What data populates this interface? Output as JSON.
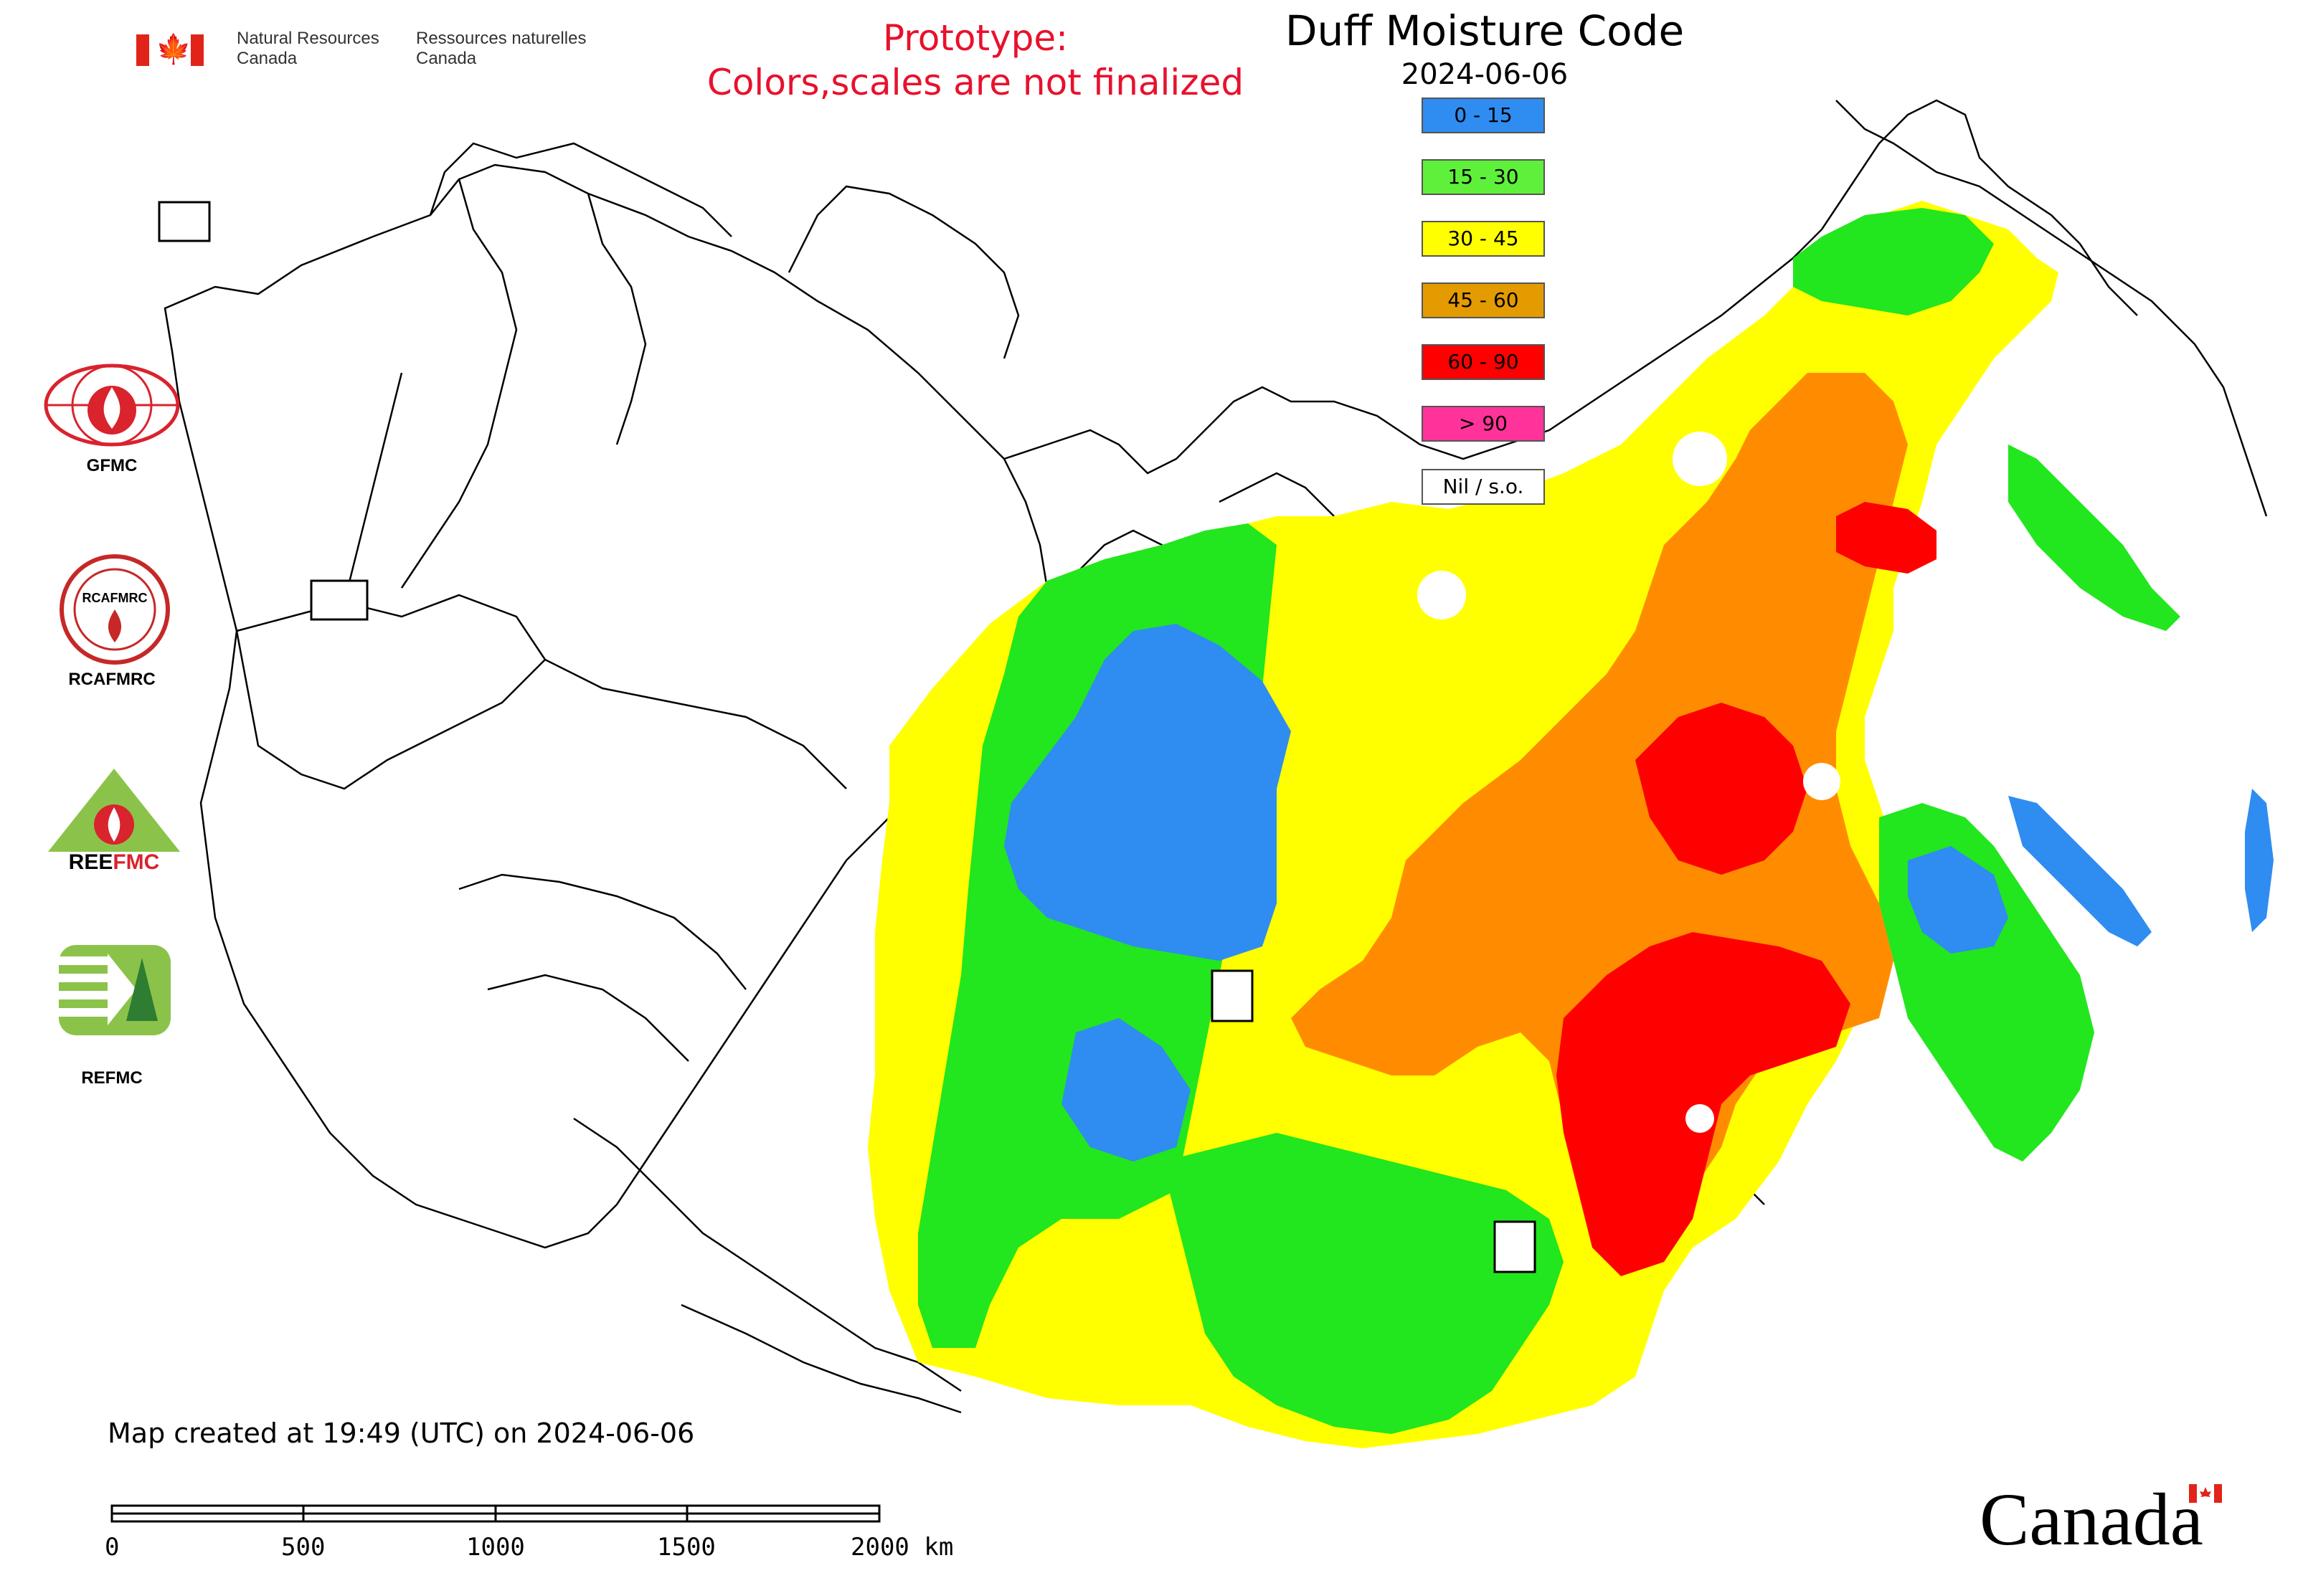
{
  "header": {
    "department_en": [
      "Natural Resources",
      "Canada"
    ],
    "department_fr": [
      "Ressources naturelles",
      "Canada"
    ],
    "flag_icon": "canada-flag-icon"
  },
  "prototype_notice": {
    "line1": "Prototype:",
    "line2": "Colors,scales are not finalized",
    "color": "#e8112d"
  },
  "map_title": "Duff Moisture Code",
  "map_date": "2024-06-06",
  "legend": [
    {
      "label": "0 - 15",
      "color": "#2f8cf0"
    },
    {
      "label": "15 - 30",
      "color": "#5ff03c"
    },
    {
      "label": "30 - 45",
      "color": "#ffff00"
    },
    {
      "label": "45 - 60",
      "color": "#e39b00"
    },
    {
      "label": "60 - 90",
      "color": "#ff0000"
    },
    {
      "label": "> 90",
      "color": "#ff3399"
    },
    {
      "label": "Nil / s.o.",
      "color": "#ffffff"
    }
  ],
  "organizations": [
    {
      "label": "GFMC"
    },
    {
      "label": "RCAFMRC"
    },
    {
      "label": "REEFMC"
    },
    {
      "label": "REFMC"
    }
  ],
  "caption": "Map created at 19:49 (UTC) on 2024-06-06",
  "scale_bar": {
    "ticks": [
      "0",
      "500",
      "1000",
      "1500",
      "2000 km"
    ]
  },
  "wordmark": "Canada",
  "colors": {
    "blue": "#2f8cf0",
    "green": "#22e61e",
    "yellow": "#ffff00",
    "orange": "#ff8c00",
    "red": "#ff0000"
  }
}
